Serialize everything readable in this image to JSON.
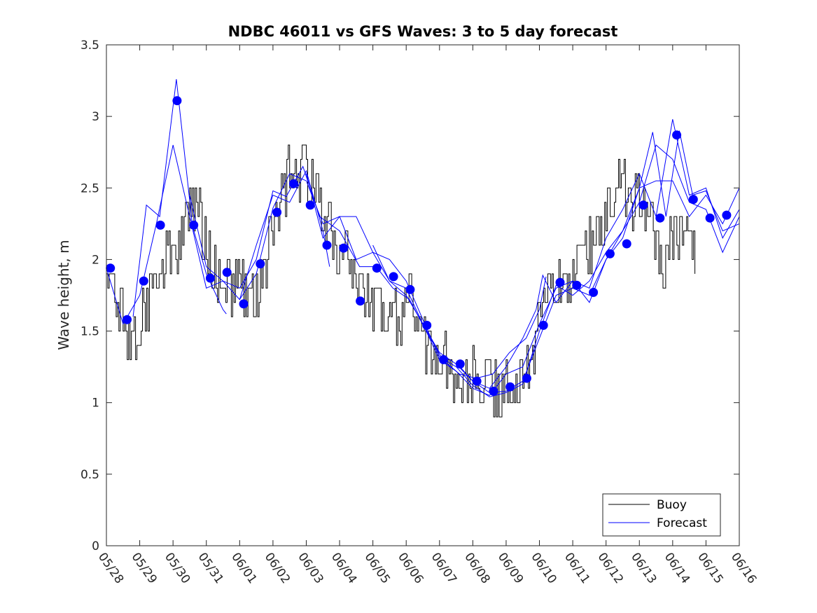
{
  "chart_data": {
    "type": "line",
    "title": "NDBC 46011 vs GFS Waves: 3 to 5 day forecast",
    "xlabel": "",
    "ylabel": "Wave height, m",
    "x_start": "05/28",
    "x_end": "06/16",
    "x_unit": "days since 05/28",
    "xlim": [
      0,
      19
    ],
    "ylim": [
      0,
      3.5
    ],
    "yticks": [
      0,
      0.5,
      1,
      1.5,
      2,
      2.5,
      3,
      3.5
    ],
    "ytick_labels": [
      "0",
      "0.5",
      "1",
      "1.5",
      "2",
      "2.5",
      "3",
      "3.5"
    ],
    "xtick_labels": [
      "05/28",
      "05/29",
      "05/30",
      "05/31",
      "06/01",
      "06/02",
      "06/03",
      "06/04",
      "06/05",
      "06/06",
      "06/07",
      "06/08",
      "06/09",
      "06/10",
      "06/11",
      "06/12",
      "06/13",
      "06/14",
      "06/15",
      "06/16"
    ],
    "grid": false,
    "legend": {
      "placement": "bottom-right",
      "entries": [
        "Buoy",
        "Forecast"
      ]
    },
    "colors": {
      "buoy": "#000000",
      "forecast": "#0000ff"
    },
    "buoy_anchors": [
      [
        0.0,
        1.9
      ],
      [
        0.3,
        1.7
      ],
      [
        0.6,
        1.45
      ],
      [
        1.0,
        1.5
      ],
      [
        1.25,
        1.7
      ],
      [
        1.5,
        1.9
      ],
      [
        1.75,
        2.0
      ],
      [
        2.0,
        2.0
      ],
      [
        2.3,
        2.2
      ],
      [
        2.5,
        2.3
      ],
      [
        2.7,
        2.3
      ],
      [
        2.9,
        2.2
      ],
      [
        3.2,
        1.9
      ],
      [
        3.5,
        1.85
      ],
      [
        3.7,
        1.8
      ],
      [
        4.0,
        1.85
      ],
      [
        4.2,
        1.75
      ],
      [
        4.5,
        1.7
      ],
      [
        4.8,
        2.0
      ],
      [
        5.0,
        2.3
      ],
      [
        5.3,
        2.5
      ],
      [
        5.6,
        2.6
      ],
      [
        6.0,
        2.6
      ],
      [
        6.3,
        2.45
      ],
      [
        6.6,
        2.2
      ],
      [
        7.0,
        2.1
      ],
      [
        7.3,
        2.0
      ],
      [
        7.6,
        1.8
      ],
      [
        7.9,
        1.7
      ],
      [
        8.2,
        1.65
      ],
      [
        8.5,
        1.55
      ],
      [
        8.8,
        1.55
      ],
      [
        9.0,
        1.7
      ],
      [
        9.3,
        1.6
      ],
      [
        9.6,
        1.4
      ],
      [
        9.9,
        1.3
      ],
      [
        10.2,
        1.25
      ],
      [
        10.5,
        1.2
      ],
      [
        10.8,
        1.15
      ],
      [
        11.2,
        1.15
      ],
      [
        11.5,
        1.1
      ],
      [
        11.8,
        1.05
      ],
      [
        12.0,
        1.15
      ],
      [
        12.3,
        1.2
      ],
      [
        12.5,
        1.15
      ],
      [
        12.8,
        1.3
      ],
      [
        13.0,
        1.6
      ],
      [
        13.3,
        1.75
      ],
      [
        13.6,
        1.85
      ],
      [
        14.0,
        1.9
      ],
      [
        14.3,
        2.0
      ],
      [
        14.6,
        2.15
      ],
      [
        14.9,
        2.3
      ],
      [
        15.2,
        2.4
      ],
      [
        15.5,
        2.5
      ],
      [
        15.8,
        2.4
      ],
      [
        16.0,
        2.45
      ],
      [
        16.3,
        2.35
      ],
      [
        16.5,
        2.1
      ],
      [
        16.7,
        1.9
      ],
      [
        16.9,
        2.1
      ],
      [
        17.2,
        2.2
      ],
      [
        17.5,
        2.15
      ],
      [
        17.7,
        2.1
      ]
    ],
    "buoy_step_hours": 1,
    "forecast_markers": [
      [
        0.12,
        1.94
      ],
      [
        0.62,
        1.58
      ],
      [
        1.12,
        1.85
      ],
      [
        1.62,
        2.24
      ],
      [
        2.12,
        3.11
      ],
      [
        2.62,
        2.24
      ],
      [
        3.12,
        1.87
      ],
      [
        3.62,
        1.91
      ],
      [
        4.12,
        1.69
      ],
      [
        4.62,
        1.97
      ],
      [
        5.12,
        2.33
      ],
      [
        5.62,
        2.53
      ],
      [
        6.12,
        2.38
      ],
      [
        6.62,
        2.1
      ],
      [
        7.12,
        2.08
      ],
      [
        7.62,
        1.71
      ],
      [
        8.12,
        1.94
      ],
      [
        8.62,
        1.88
      ],
      [
        9.12,
        1.79
      ],
      [
        9.62,
        1.54
      ],
      [
        10.12,
        1.3
      ],
      [
        10.62,
        1.27
      ],
      [
        11.12,
        1.15
      ],
      [
        11.62,
        1.08
      ],
      [
        12.12,
        1.11
      ],
      [
        12.62,
        1.17
      ],
      [
        13.12,
        1.54
      ],
      [
        13.62,
        1.84
      ],
      [
        14.12,
        1.82
      ],
      [
        14.62,
        1.77
      ],
      [
        15.12,
        2.04
      ],
      [
        15.62,
        2.11
      ],
      [
        16.12,
        2.38
      ],
      [
        16.62,
        2.29
      ],
      [
        17.12,
        2.87
      ],
      [
        17.62,
        2.42
      ],
      [
        18.12,
        2.29
      ],
      [
        18.62,
        2.31
      ]
    ],
    "forecast_runs": [
      {
        "name": "run-1",
        "values": [
          [
            0.0,
            1.94
          ],
          [
            0.5,
            1.55
          ],
          [
            1.0,
            1.75
          ],
          [
            1.5,
            2.25
          ],
          [
            2.0,
            2.8
          ],
          [
            2.5,
            2.3
          ],
          [
            3.0,
            1.9
          ],
          [
            3.5,
            1.65
          ],
          [
            3.6,
            1.62
          ]
        ]
      },
      {
        "name": "run-2",
        "values": [
          [
            0.8,
            1.6
          ],
          [
            1.2,
            2.38
          ],
          [
            1.6,
            2.3
          ],
          [
            2.1,
            3.26
          ],
          [
            2.6,
            2.2
          ],
          [
            3.0,
            1.8
          ],
          [
            3.5,
            1.85
          ],
          [
            4.0,
            1.72
          ],
          [
            4.5,
            2.1
          ],
          [
            5.0,
            2.45
          ],
          [
            5.5,
            2.4
          ],
          [
            6.0,
            2.62
          ],
          [
            6.5,
            2.2
          ],
          [
            6.7,
            1.95
          ]
        ]
      },
      {
        "name": "run-3",
        "values": [
          [
            2.5,
            2.45
          ],
          [
            3.0,
            1.95
          ],
          [
            3.5,
            1.85
          ],
          [
            4.0,
            1.8
          ],
          [
            4.5,
            2.0
          ],
          [
            5.0,
            2.48
          ],
          [
            5.4,
            2.44
          ],
          [
            5.9,
            2.65
          ],
          [
            6.4,
            2.3
          ],
          [
            7.0,
            2.2
          ],
          [
            7.6,
            1.95
          ],
          [
            8.1,
            1.95
          ],
          [
            8.6,
            1.8
          ],
          [
            9.1,
            1.72
          ],
          [
            9.6,
            1.5
          ],
          [
            10.1,
            1.3
          ],
          [
            10.6,
            1.2
          ],
          [
            11.1,
            1.17
          ],
          [
            11.6,
            1.2
          ],
          [
            12.1,
            1.35
          ],
          [
            12.6,
            1.45
          ],
          [
            13.0,
            1.65
          ],
          [
            13.2,
            1.88
          ]
        ]
      },
      {
        "name": "run-4",
        "values": [
          [
            4.0,
            1.72
          ],
          [
            4.5,
            1.9
          ],
          [
            5.0,
            2.36
          ],
          [
            5.5,
            2.6
          ],
          [
            6.0,
            2.55
          ],
          [
            6.5,
            2.25
          ],
          [
            7.0,
            2.3
          ],
          [
            7.5,
            2.0
          ],
          [
            8.0,
            2.05
          ],
          [
            8.5,
            1.85
          ],
          [
            9.0,
            1.75
          ],
          [
            9.5,
            1.55
          ],
          [
            10.0,
            1.35
          ],
          [
            10.5,
            1.27
          ],
          [
            11.0,
            1.15
          ],
          [
            11.5,
            1.07
          ],
          [
            12.0,
            1.08
          ],
          [
            12.5,
            1.15
          ],
          [
            13.0,
            1.45
          ],
          [
            13.5,
            1.75
          ],
          [
            14.0,
            1.8
          ],
          [
            14.5,
            1.75
          ],
          [
            15.0,
            2.0
          ],
          [
            15.5,
            2.15
          ],
          [
            16.0,
            2.5
          ],
          [
            16.5,
            2.55
          ],
          [
            17.0,
            2.55
          ],
          [
            17.5,
            2.3
          ],
          [
            18.0,
            2.45
          ],
          [
            18.5,
            2.25
          ],
          [
            19.0,
            2.5
          ]
        ]
      },
      {
        "name": "run-5",
        "values": [
          [
            6.0,
            2.6
          ],
          [
            6.5,
            2.15
          ],
          [
            7.0,
            2.3
          ],
          [
            7.5,
            2.3
          ],
          [
            8.0,
            2.05
          ],
          [
            8.5,
            2.0
          ],
          [
            9.0,
            1.85
          ],
          [
            9.5,
            1.58
          ],
          [
            10.0,
            1.32
          ],
          [
            10.5,
            1.25
          ],
          [
            11.0,
            1.12
          ],
          [
            11.5,
            1.04
          ],
          [
            12.0,
            1.07
          ],
          [
            12.5,
            1.13
          ],
          [
            13.0,
            1.5
          ],
          [
            13.5,
            1.82
          ],
          [
            14.0,
            1.75
          ],
          [
            14.5,
            1.85
          ],
          [
            15.0,
            2.05
          ],
          [
            15.5,
            2.2
          ],
          [
            16.0,
            2.4
          ],
          [
            16.5,
            2.8
          ],
          [
            17.0,
            2.7
          ],
          [
            17.5,
            2.4
          ],
          [
            18.0,
            2.35
          ],
          [
            18.5,
            2.05
          ],
          [
            19.0,
            2.3
          ]
        ]
      },
      {
        "name": "run-6",
        "values": [
          [
            8.0,
            2.1
          ],
          [
            8.5,
            1.85
          ],
          [
            9.0,
            1.8
          ],
          [
            9.5,
            1.55
          ],
          [
            10.0,
            1.3
          ],
          [
            10.5,
            1.22
          ],
          [
            11.0,
            1.1
          ],
          [
            11.5,
            1.05
          ],
          [
            12.0,
            1.2
          ],
          [
            12.5,
            1.25
          ],
          [
            13.0,
            1.55
          ],
          [
            13.5,
            1.8
          ],
          [
            14.0,
            1.85
          ],
          [
            14.5,
            1.8
          ],
          [
            15.0,
            2.15
          ],
          [
            15.5,
            2.35
          ],
          [
            16.0,
            2.6
          ],
          [
            16.5,
            2.3
          ],
          [
            17.0,
            2.98
          ],
          [
            17.5,
            2.45
          ],
          [
            18.0,
            2.5
          ],
          [
            18.5,
            2.15
          ],
          [
            19.0,
            2.35
          ]
        ]
      },
      {
        "name": "run-7",
        "values": [
          [
            10.5,
            1.28
          ],
          [
            11.0,
            1.15
          ],
          [
            11.5,
            1.1
          ],
          [
            12.0,
            1.25
          ],
          [
            12.5,
            1.45
          ],
          [
            12.9,
            1.65
          ],
          [
            13.1,
            1.89
          ],
          [
            13.5,
            1.7
          ],
          [
            14.0,
            1.85
          ],
          [
            14.5,
            1.7
          ],
          [
            15.0,
            2.0
          ],
          [
            15.5,
            2.2
          ],
          [
            16.0,
            2.5
          ],
          [
            16.4,
            2.89
          ],
          [
            16.8,
            2.3
          ],
          [
            17.2,
            2.9
          ],
          [
            17.6,
            2.45
          ],
          [
            18.0,
            2.48
          ],
          [
            18.5,
            2.2
          ],
          [
            19.0,
            2.25
          ]
        ]
      }
    ]
  }
}
